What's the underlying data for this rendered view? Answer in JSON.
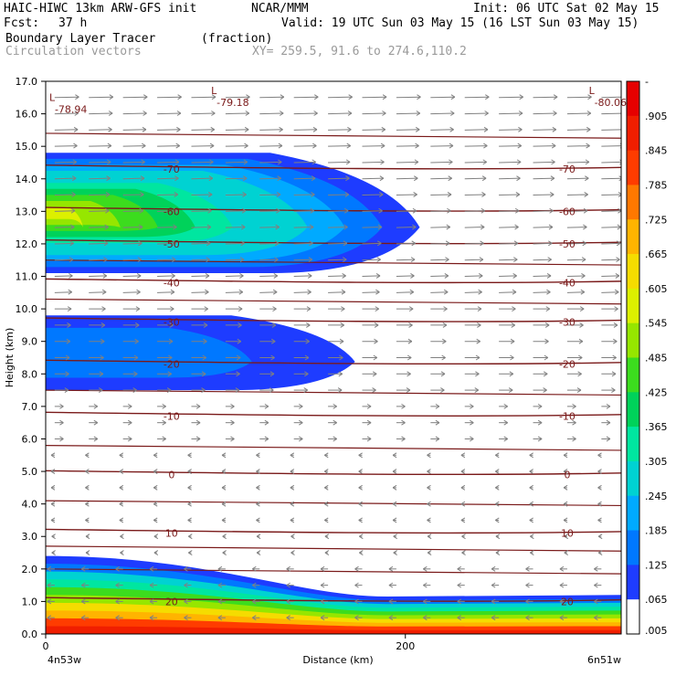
{
  "header": {
    "model": "HAIC-HIWC 13km ARW-GFS init",
    "org": "NCAR/MMM",
    "init": "Init: 06 UTC Sat 02 May 15",
    "fcst_label": "Fcst:",
    "fcst_value": "37 h",
    "valid": "Valid: 19 UTC Sun 03 May 15 (16 LST Sun 03 May 15)",
    "field_name": "Boundary Layer Tracer",
    "field_units": "(fraction)",
    "vector_name": "Circulation vectors",
    "xy": "XY= 259.5, 91.6 to 274.6,110.2"
  },
  "colors": {
    "contour": "#7a1a1a",
    "vector": "#808080",
    "scale": [
      "#ffffff",
      "#1e3cff",
      "#0078ff",
      "#00aaff",
      "#00d2d2",
      "#00e6a0",
      "#00d25a",
      "#3cdc1e",
      "#96e600",
      "#dcf000",
      "#f5dc00",
      "#ffb400",
      "#ff7800",
      "#ff3c00",
      "#f01e00",
      "#e60000"
    ]
  },
  "chart_data": {
    "type": "heatmap",
    "title": "Boundary Layer Tracer",
    "units": "(fraction)",
    "xlabel": "Distance (km)",
    "ylabel": "Height (km)",
    "xlim": [
      0,
      320
    ],
    "ylim": [
      0,
      17
    ],
    "x_ticks": [
      {
        "value": 0,
        "label": "0"
      },
      {
        "value": 200,
        "label": "200"
      }
    ],
    "x_end_labels": {
      "left": "4n53w",
      "right": "6n51w"
    },
    "y_ticks": [
      "0.0",
      "1.0",
      "2.0",
      "3.0",
      "4.0",
      "5.0",
      "6.0",
      "7.0",
      "8.0",
      "9.0",
      "10.0",
      "11.0",
      "12.0",
      "13.0",
      "14.0",
      "15.0",
      "16.0",
      "17.0"
    ],
    "colorbar_labels": [
      "-",
      ".905",
      ".845",
      ".785",
      ".725",
      ".665",
      ".605",
      ".545",
      ".485",
      ".425",
      ".365",
      ".305",
      ".245",
      ".185",
      ".125",
      ".065",
      ".005"
    ],
    "tracer_layers": [
      {
        "name": "upper",
        "y_range": [
          11.1,
          14.8
        ],
        "x_extent": 208,
        "peak": 0.55
      },
      {
        "name": "middle",
        "y_range": [
          7.5,
          9.8
        ],
        "x_extent": 172,
        "peak": 0.08
      },
      {
        "name": "boundary",
        "y_range": [
          0.0,
          2.4
        ],
        "x_extent": 320,
        "peak": 0.95
      }
    ],
    "temperature_contours": [
      {
        "value": -70,
        "label": "-70",
        "height": 14.3
      },
      {
        "value": -60,
        "label": "-60",
        "height": 13.0
      },
      {
        "value": -50,
        "label": "-50",
        "height": 12.0
      },
      {
        "value": -40,
        "label": "-40",
        "height": 10.8
      },
      {
        "value": -30,
        "label": "-30",
        "height": 9.6
      },
      {
        "value": -20,
        "label": "-20",
        "height": 8.3
      },
      {
        "value": -10,
        "label": "-10",
        "height": 6.7
      },
      {
        "value": 0,
        "label": "0",
        "height": 4.9
      },
      {
        "value": 10,
        "label": "10",
        "height": 3.1
      },
      {
        "value": 20,
        "label": "20",
        "height": 1.0
      }
    ],
    "extrema": [
      {
        "label": "L",
        "value": "-78.94",
        "x": 2,
        "y": 16.4
      },
      {
        "label": "L",
        "value": "-79.18",
        "x": 92,
        "y": 16.6
      },
      {
        "label": "L",
        "value": "-80.06",
        "x": 302,
        "y": 16.6
      }
    ]
  }
}
